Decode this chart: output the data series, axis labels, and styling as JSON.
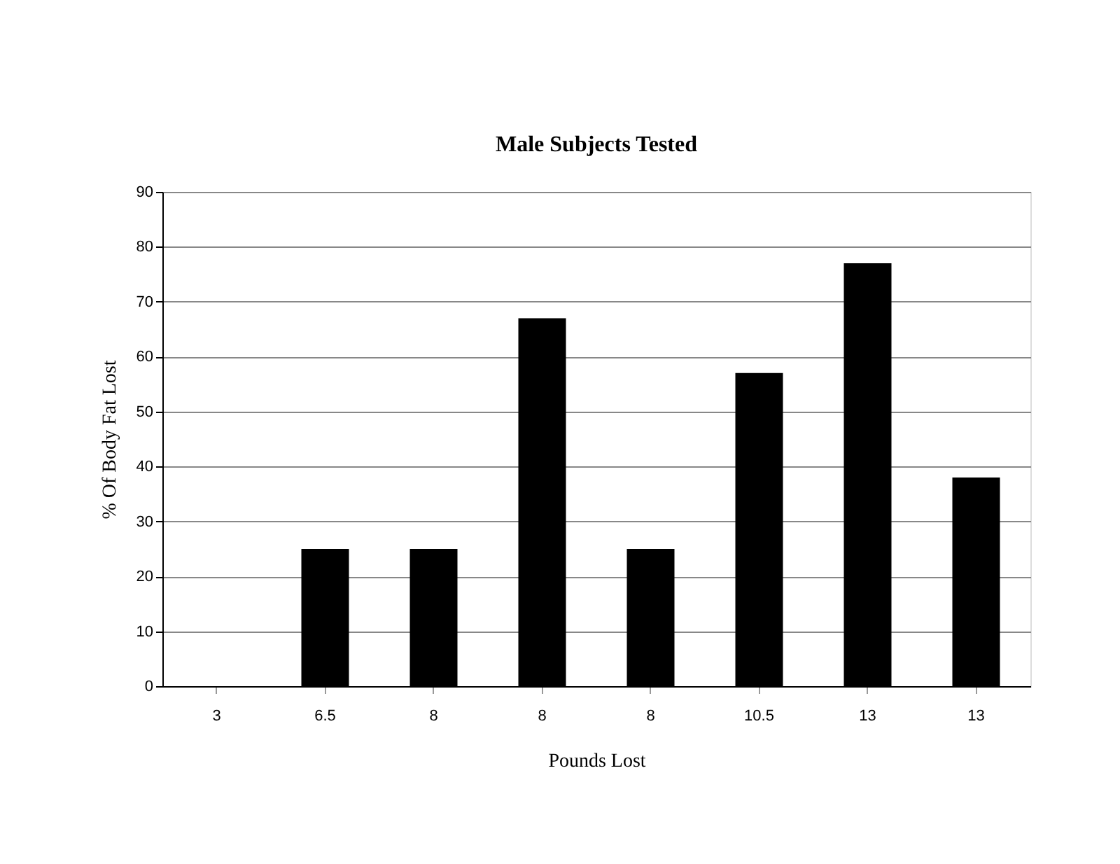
{
  "chart_data": {
    "type": "bar",
    "title": "Male Subjects Tested",
    "xlabel": "Pounds Lost",
    "ylabel": "% Of Body Fat Lost",
    "categories": [
      "3",
      "6.5",
      "8",
      "8",
      "8",
      "10.5",
      "13",
      "13"
    ],
    "values": [
      0,
      25,
      25,
      67,
      25,
      57,
      77,
      38
    ],
    "color": "#000000",
    "ylim": [
      0,
      90
    ],
    "yticks": [
      0,
      10,
      20,
      30,
      40,
      50,
      60,
      70,
      80,
      90
    ],
    "grid": "y"
  }
}
